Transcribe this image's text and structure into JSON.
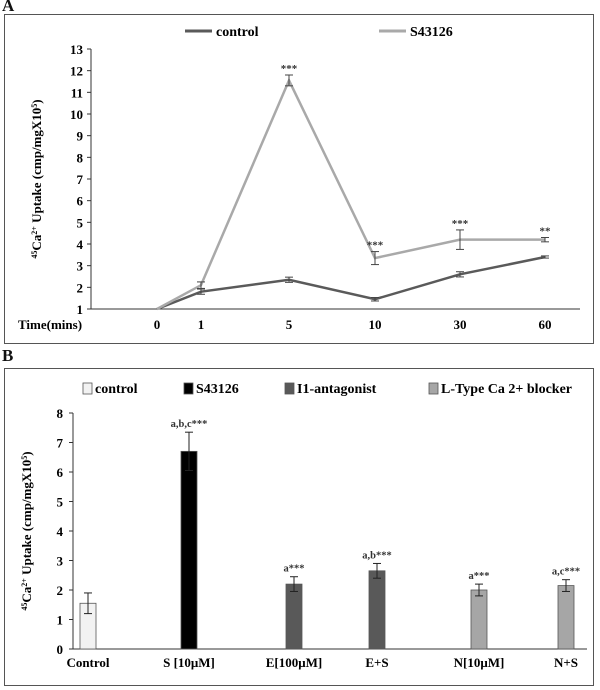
{
  "panels": {
    "a": {
      "letter": "A"
    },
    "b": {
      "letter": "B"
    }
  },
  "chart_data": [
    {
      "type": "line",
      "panel": "A",
      "title": "",
      "xlabel": "Time(mins)",
      "ylabel": "45Ca2+ Uptake (cmp/mgX10^5)",
      "ylim": [
        1,
        13
      ],
      "yticks": [
        1,
        2,
        3,
        4,
        5,
        6,
        7,
        8,
        9,
        10,
        11,
        12,
        13
      ],
      "categories": [
        "0",
        "1",
        "5",
        "10",
        "30",
        "60"
      ],
      "legend_position": "top",
      "series": [
        {
          "name": "control",
          "color": "#5a5a5a",
          "values": [
            1.0,
            1.8,
            2.35,
            1.45,
            2.6,
            3.4
          ],
          "errors": [
            0,
            0.12,
            0.12,
            0.08,
            0.12,
            0.05
          ],
          "annotations": [
            "",
            "",
            "",
            "",
            "",
            ""
          ]
        },
        {
          "name": "S43126",
          "color": "#a9a9a9",
          "values": [
            1.0,
            2.1,
            11.55,
            3.35,
            4.2,
            4.2
          ],
          "errors": [
            0,
            0.15,
            0.25,
            0.3,
            0.45,
            0.1
          ],
          "annotations": [
            "",
            "",
            "***",
            "***",
            "***",
            "**"
          ]
        }
      ]
    },
    {
      "type": "bar",
      "panel": "B",
      "title": "",
      "xlabel": "",
      "ylabel": "45Ca2+ Uptake (cmp/mgX10^5)",
      "ylim": [
        0,
        8
      ],
      "yticks": [
        0,
        1,
        2,
        3,
        4,
        5,
        6,
        7,
        8
      ],
      "legend_position": "top",
      "legend": [
        {
          "name": "control",
          "color": "#f2f2f2"
        },
        {
          "name": "S43126",
          "color": "#000000"
        },
        {
          "name": "I1-antagonist",
          "color": "#595959"
        },
        {
          "name": "L-Type Ca 2+ blocker",
          "color": "#a6a6a6"
        }
      ],
      "bars": [
        {
          "category": "Control",
          "value": 1.55,
          "error": 0.35,
          "annotation": "",
          "color": "#f2f2f2"
        },
        {
          "category": "S [10μM]",
          "value": 6.7,
          "error": 0.65,
          "annotation": "a,b,c***",
          "color": "#000000"
        },
        {
          "category": "E[100μM]",
          "value": 2.2,
          "error": 0.25,
          "annotation": "a***",
          "color": "#595959"
        },
        {
          "category": "E+S",
          "value": 2.65,
          "error": 0.25,
          "annotation": "a,b***",
          "color": "#595959"
        },
        {
          "category": "N[10μM]",
          "value": 2.0,
          "error": 0.2,
          "annotation": "a***",
          "color": "#a6a6a6"
        },
        {
          "category": "N+S",
          "value": 2.15,
          "error": 0.2,
          "annotation": "a,c***",
          "color": "#a6a6a6"
        }
      ]
    }
  ]
}
